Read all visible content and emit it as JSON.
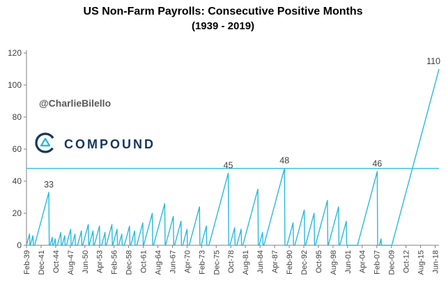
{
  "title": {
    "line1": "US Non-Farm Payrolls: Consecutive Positive Months",
    "line2": "(1939 - 2019)"
  },
  "watermark": "@CharlieBilello",
  "logo": {
    "text": "COMPOUND"
  },
  "chart_data": {
    "type": "line",
    "title": "US Non-Farm Payrolls: Consecutive Positive Months (1939 - 2019)",
    "xlabel": "",
    "ylabel": "",
    "ylim": [
      0,
      120
    ],
    "y_ticks": [
      0,
      20,
      40,
      60,
      80,
      100,
      120
    ],
    "grid": false,
    "legend": "none",
    "line_color": "#29b9dd",
    "axis_color": "#808080",
    "label_color": "#404040",
    "reference_line": 48,
    "x_tick_step_months": 34,
    "x_tick_labels": [
      "Feb-39",
      "Dec-41",
      "Oct-44",
      "Aug-47",
      "Jun-50",
      "Apr-53",
      "Feb-56",
      "Dec-58",
      "Oct-61",
      "Aug-64",
      "Jun-67",
      "Apr-70",
      "Feb-73",
      "Dec-75",
      "Oct-78",
      "Aug-81",
      "Jun-84",
      "Apr-87",
      "Feb-90",
      "Dec-92",
      "Oct-95",
      "Aug-98",
      "Jun-01",
      "Apr-04",
      "Feb-07",
      "Dec-09",
      "Oct-12",
      "Aug-15",
      "Jun-18"
    ],
    "annotated_peaks": [
      33,
      45,
      48,
      46,
      110
    ],
    "segments": [
      {
        "zeros": 1,
        "peak": 7
      },
      {
        "zeros": 2,
        "peak": 6
      },
      {
        "zeros": 4,
        "peak": 33,
        "labeled": true
      },
      {
        "zeros": 3,
        "peak": 5
      },
      {
        "zeros": 3,
        "peak": 4
      },
      {
        "zeros": 5,
        "peak": 8
      },
      {
        "zeros": 3,
        "peak": 6
      },
      {
        "zeros": 4,
        "peak": 10
      },
      {
        "zeros": 3,
        "peak": 7
      },
      {
        "zeros": 6,
        "peak": 9
      },
      {
        "zeros": 3,
        "peak": 13
      },
      {
        "zeros": 2,
        "peak": 9
      },
      {
        "zeros": 3,
        "peak": 12
      },
      {
        "zeros": 5,
        "peak": 8
      },
      {
        "zeros": 3,
        "peak": 13
      },
      {
        "zeros": 2,
        "peak": 10
      },
      {
        "zeros": 4,
        "peak": 7
      },
      {
        "zeros": 6,
        "peak": 12
      },
      {
        "zeros": 3,
        "peak": 9
      },
      {
        "zeros": 5,
        "peak": 14
      },
      {
        "zeros": 2,
        "peak": 20
      },
      {
        "zeros": 3,
        "peak": 26
      },
      {
        "zeros": 2,
        "peak": 18
      },
      {
        "zeros": 3,
        "peak": 15
      },
      {
        "zeros": 4,
        "peak": 10
      },
      {
        "zeros": 5,
        "peak": 24
      },
      {
        "zeros": 4,
        "peak": 12
      },
      {
        "zeros": 6,
        "peak": 45,
        "labeled": true
      },
      {
        "zeros": 4,
        "peak": 11
      },
      {
        "zeros": 5,
        "peak": 10
      },
      {
        "zeros": 4,
        "peak": 35
      },
      {
        "zeros": 3,
        "peak": 8
      },
      {
        "zeros": 3,
        "peak": 48,
        "labeled": true
      },
      {
        "zeros": 6,
        "peak": 14
      },
      {
        "zeros": 4,
        "peak": 22
      },
      {
        "zeros": 3,
        "peak": 20
      },
      {
        "zeros": 3,
        "peak": 28
      },
      {
        "zeros": 2,
        "peak": 24
      },
      {
        "zeros": 3,
        "peak": 15
      },
      {
        "zeros": 26,
        "peak": 46,
        "labeled": true
      },
      {
        "zeros": 5,
        "peak": 4
      },
      {
        "zeros": 25,
        "peak": 110,
        "labeled": true
      }
    ]
  }
}
